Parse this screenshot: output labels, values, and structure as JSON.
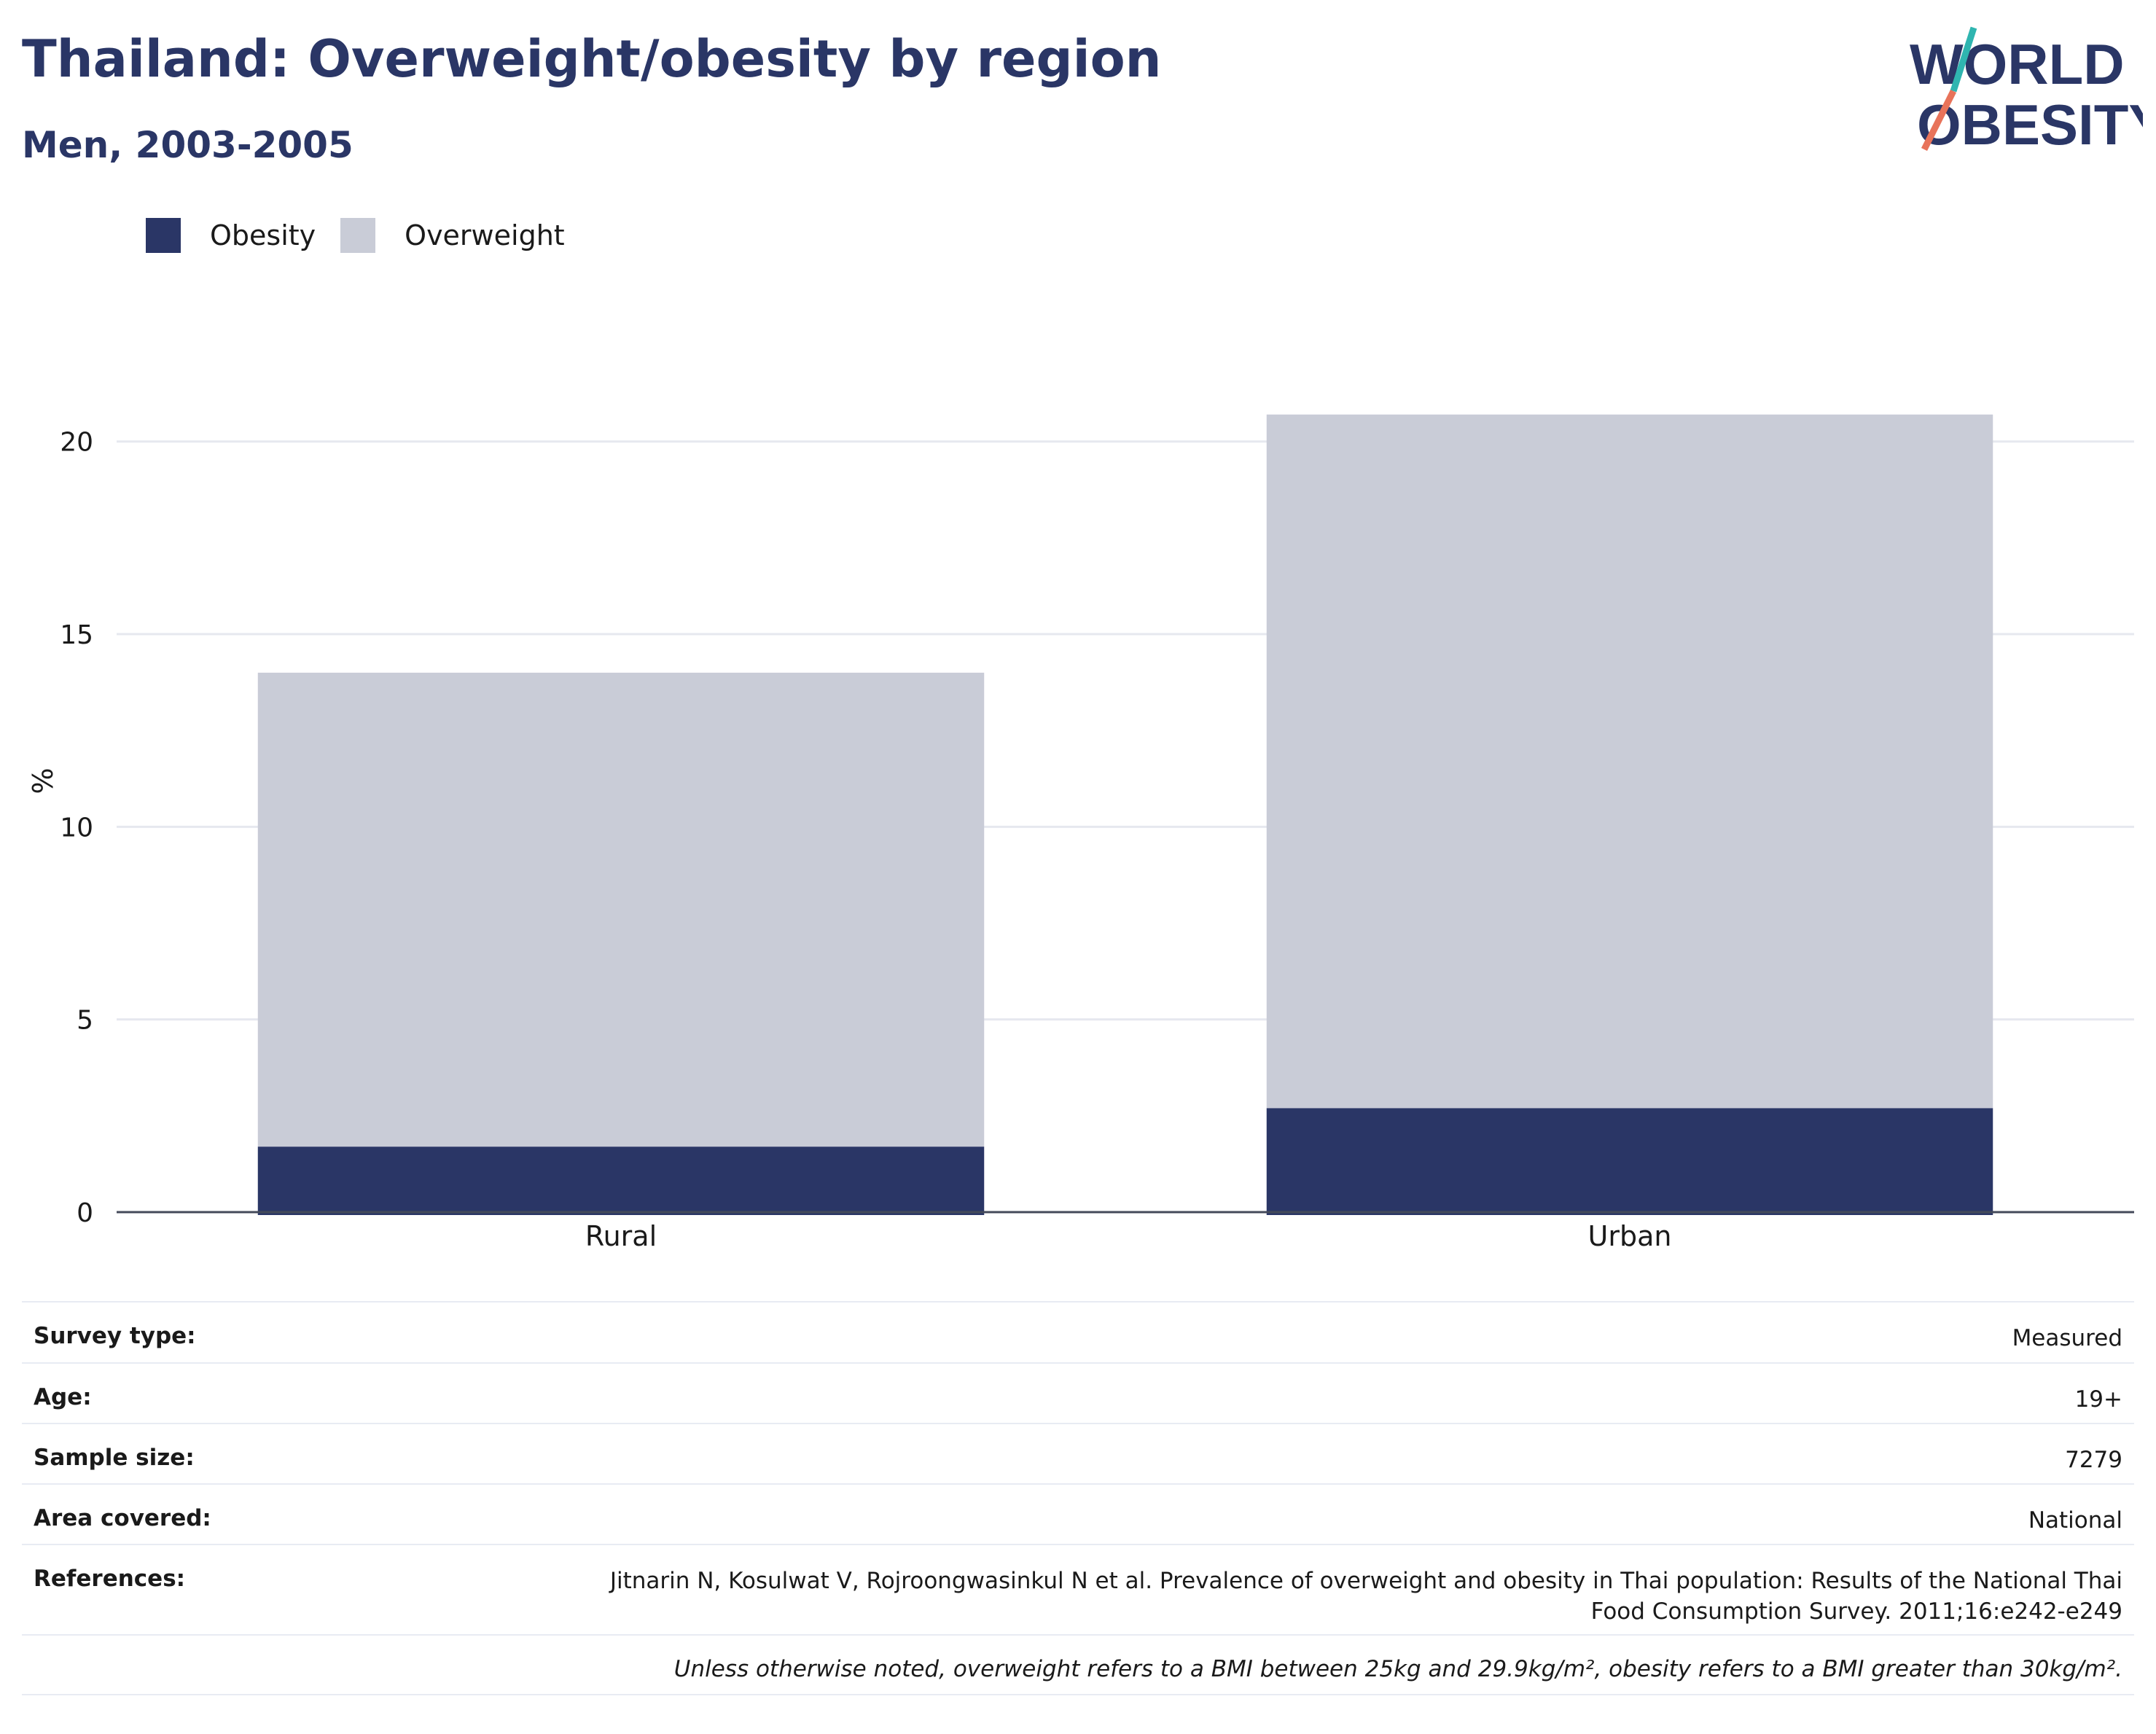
{
  "title": "Thailand: Overweight/obesity by region",
  "subtitle": "Men, 2003-2005",
  "logo": {
    "line1": "WORLD",
    "line2": "OBESITY"
  },
  "colors": {
    "obesity": "#2a3666",
    "overweight": "#c9ccd7",
    "brand": "#2a3666",
    "accent_teal": "#2fb5b0",
    "accent_coral": "#e8735a"
  },
  "chart_data": {
    "type": "bar",
    "stacked": true,
    "categories": [
      "Rural",
      "Urban"
    ],
    "series": [
      {
        "name": "Obesity",
        "values": [
          1.7,
          2.7
        ]
      },
      {
        "name": "Overweight",
        "values": [
          12.3,
          18.0
        ]
      }
    ],
    "ylabel": "%",
    "xlabel": "",
    "ylim": [
      0,
      22
    ],
    "yticks": [
      0,
      5,
      10,
      15,
      20
    ],
    "grid": true,
    "legend_position": "top-left"
  },
  "info": [
    {
      "key": "Survey type:",
      "value": "Measured"
    },
    {
      "key": "Age:",
      "value": "19+"
    },
    {
      "key": "Sample size:",
      "value": "7279"
    },
    {
      "key": "Area covered:",
      "value": "National"
    },
    {
      "key": "References:",
      "value": "Jitnarin N, Kosulwat V, Rojroongwasinkul N et al. Prevalence of overweight and obesity in Thai population: Results of the National Thai Food Consumption Survey. 2011;16:e242-e249"
    }
  ],
  "note": "Unless otherwise noted, overweight refers to a BMI between 25kg and 29.9kg/m², obesity refers to a BMI greater than 30kg/m²."
}
